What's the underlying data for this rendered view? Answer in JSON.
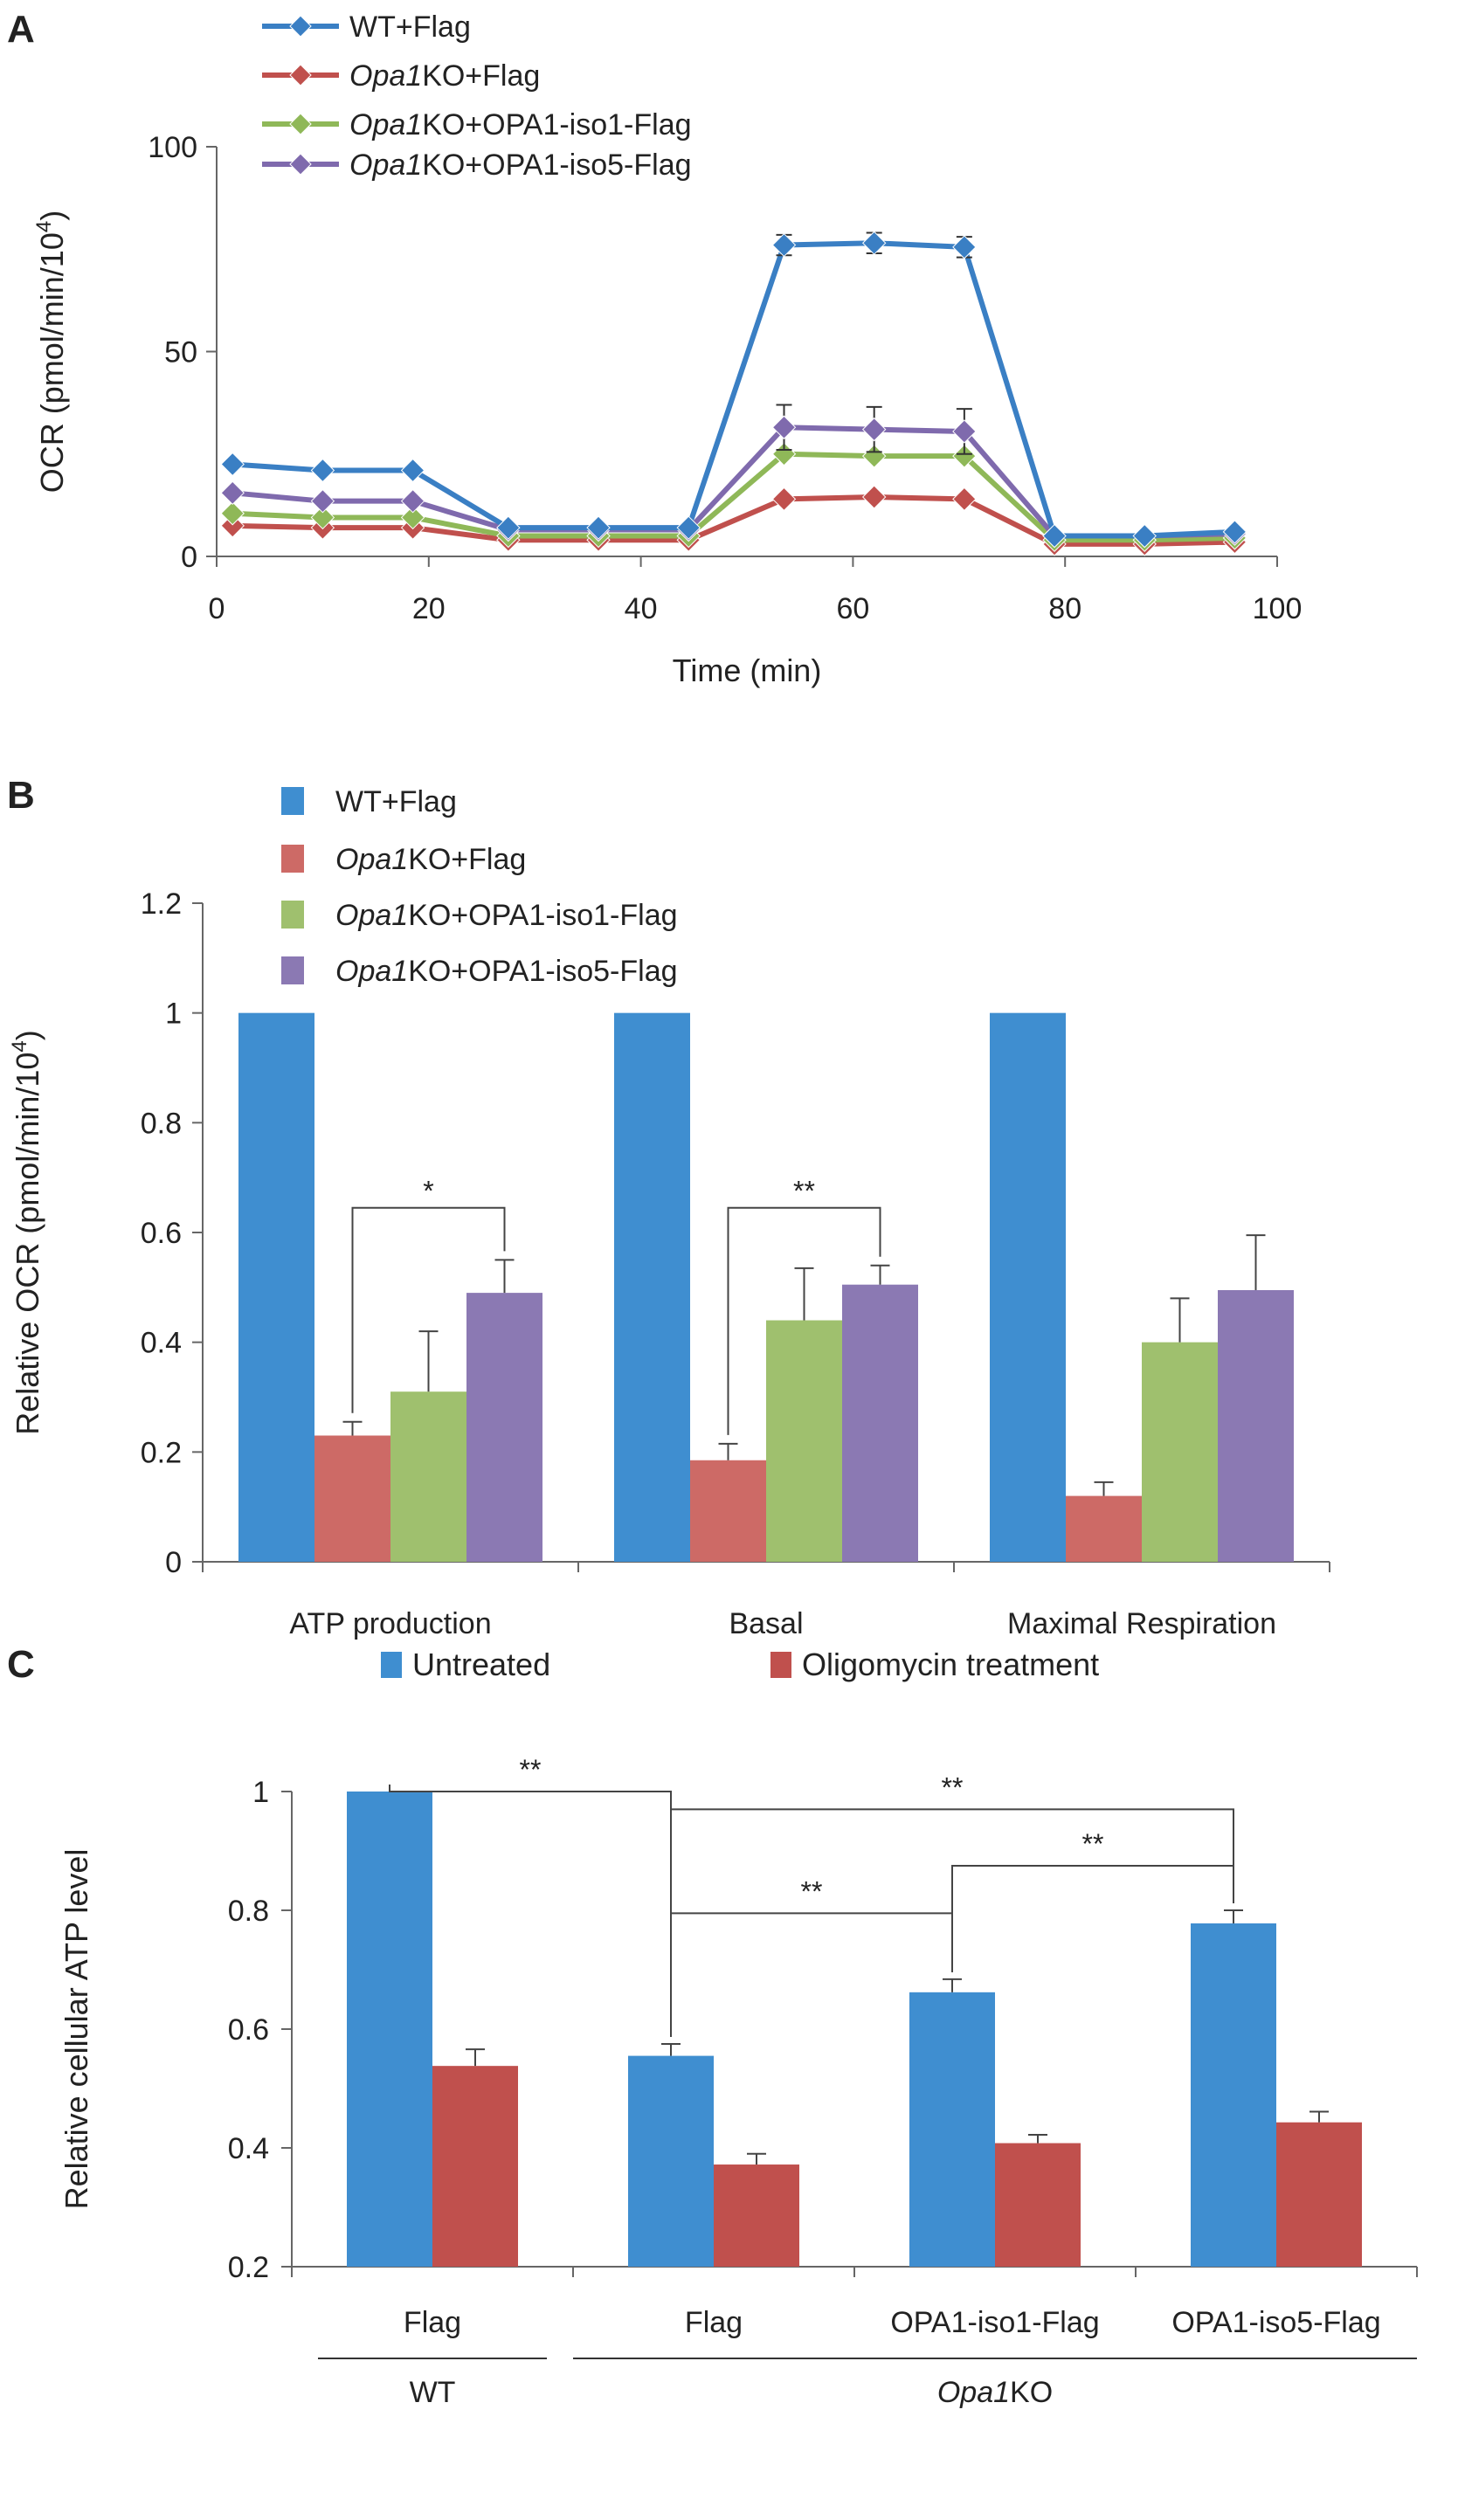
{
  "chart_data": [
    {
      "panel": "A",
      "type": "line",
      "title": "",
      "xlabel": "Time (min)",
      "ylabel": "OCR (pmol/min/10",
      "ylabel_sup": "4",
      "ylabel_close": ")",
      "xlim": [
        0,
        100
      ],
      "ylim": [
        0,
        100
      ],
      "xticks": [
        0,
        20,
        40,
        60,
        80,
        100
      ],
      "yticks": [
        0,
        50,
        100
      ],
      "x": [
        1.5,
        10,
        18.5,
        27.5,
        36,
        44.5,
        53.5,
        62,
        70.5,
        79,
        87.5,
        96
      ],
      "series": [
        {
          "name": "WT+Flag",
          "name_italic": "",
          "name_rest": "WT+Flag",
          "color": "#3a7fc4",
          "values": [
            22.5,
            21,
            21,
            7,
            7,
            7,
            76,
            76.5,
            75.5,
            5,
            5,
            6
          ],
          "errors": [
            0,
            0,
            0,
            0,
            0,
            0,
            2.5,
            2.5,
            2.5,
            0,
            0,
            0
          ]
        },
        {
          "name": "Opa1KO+Flag",
          "name_italic": "Opa1",
          "name_rest": "KO+Flag",
          "color": "#c0504d",
          "values": [
            7.5,
            7,
            7,
            4,
            4,
            4,
            14,
            14.5,
            14,
            3,
            3,
            3.5
          ],
          "errors": [
            0,
            0,
            0,
            0,
            0,
            0,
            0,
            0,
            0,
            0,
            0,
            0
          ]
        },
        {
          "name": "Opa1KO+OPA1-iso1-Flag",
          "name_italic": "Opa1",
          "name_rest": "KO+OPA1-iso1-Flag",
          "color": "#8fb858",
          "values": [
            10.5,
            9.5,
            9.5,
            5,
            5,
            5,
            25,
            24.5,
            24.5,
            4,
            4,
            4.5
          ],
          "errors": [
            0,
            0,
            0,
            0,
            0,
            0,
            0,
            0,
            0,
            0,
            0,
            0
          ]
        },
        {
          "name": "Opa1KO+OPA1-iso5-Flag",
          "name_italic": "Opa1",
          "name_rest": "KO+OPA1-iso5-Flag",
          "color": "#7f6aad",
          "values": [
            15.5,
            13.5,
            13.5,
            6.5,
            6.5,
            6.5,
            31.5,
            31,
            30.5,
            5,
            5,
            5.5
          ],
          "errors": [
            0,
            0,
            0,
            0,
            0,
            0,
            5.5,
            5.5,
            5.5,
            0,
            0,
            0
          ]
        }
      ]
    },
    {
      "panel": "B",
      "type": "bar",
      "title": "",
      "xlabel": "",
      "ylabel": "Relative OCR (pmol/min/10",
      "ylabel_sup": "4",
      "ylabel_close": ")",
      "ylim": [
        0,
        1.2
      ],
      "yticks": [
        "0",
        "0.2",
        "0.4",
        "0.6",
        "0.8",
        "1",
        "1.2"
      ],
      "categories": [
        "ATP production",
        "Basal",
        "Maximal Respiration"
      ],
      "series": [
        {
          "name": "WT+Flag",
          "name_italic": "",
          "name_rest": "WT+Flag",
          "color": "#3f8ed0",
          "values": [
            1,
            1,
            1
          ],
          "errors": [
            0,
            0,
            0
          ]
        },
        {
          "name": "Opa1KO+Flag",
          "name_italic": "Opa1",
          "name_rest": "KO+Flag",
          "color": "#cd6a66",
          "values": [
            0.23,
            0.185,
            0.12
          ],
          "errors": [
            0.025,
            0.03,
            0.025
          ]
        },
        {
          "name": "Opa1KO+OPA1-iso1-Flag",
          "name_italic": "Opa1",
          "name_rest": "KO+OPA1-iso1-Flag",
          "color": "#9fc06e",
          "values": [
            0.31,
            0.44,
            0.4
          ],
          "errors": [
            0.11,
            0.095,
            0.08
          ]
        },
        {
          "name": "Opa1KO+OPA1-iso5-Flag",
          "name_italic": "Opa1",
          "name_rest": "KO+OPA1-iso5-Flag",
          "color": "#8b79b3",
          "values": [
            0.49,
            0.505,
            0.495
          ],
          "errors": [
            0.06,
            0.035,
            0.1
          ]
        }
      ],
      "annotations": [
        {
          "text": "*",
          "category": 0,
          "from_series": 1,
          "to_series": 3,
          "y": 0.645
        },
        {
          "text": "**",
          "category": 1,
          "from_series": 1,
          "to_series": 3,
          "y": 0.645
        }
      ]
    },
    {
      "panel": "C",
      "type": "bar",
      "title": "",
      "xlabel": "",
      "ylabel": "Relative cellular ATP level",
      "ylim": [
        0.2,
        1
      ],
      "yticks": [
        "0.2",
        "0.4",
        "0.6",
        "0.8",
        "1"
      ],
      "categories": [
        "Flag",
        "Flag",
        "OPA1-iso1-Flag",
        "OPA1-iso5-Flag"
      ],
      "groups": [
        {
          "label": "WT",
          "label_italic": "",
          "label_rest": "WT",
          "from": 0,
          "to": 0
        },
        {
          "label": "Opa1KO",
          "label_italic": "Opa1",
          "label_rest": "KO",
          "from": 1,
          "to": 3
        }
      ],
      "series": [
        {
          "name": "Untreated",
          "color": "#3f8ed0",
          "values": [
            1.0,
            0.555,
            0.662,
            0.778
          ],
          "errors": [
            0,
            0.02,
            0.022,
            0.022
          ]
        },
        {
          "name": "Oligomycin treatment",
          "color": "#c0504d",
          "values": [
            0.538,
            0.372,
            0.408,
            0.443
          ],
          "errors": [
            0.028,
            0.018,
            0.014,
            0.018
          ]
        }
      ],
      "annotations": [
        {
          "text": "**",
          "from": 0,
          "to": 1,
          "y": 1.0
        },
        {
          "text": "**",
          "from": 1,
          "to": 3,
          "y": 0.97
        },
        {
          "text": "**",
          "from": 2,
          "to": 3,
          "y": 0.875
        },
        {
          "text": "**",
          "from": 1,
          "to": 2,
          "y": 0.795
        }
      ]
    }
  ],
  "panels": {
    "a": "A",
    "b": "B",
    "c": "C"
  }
}
